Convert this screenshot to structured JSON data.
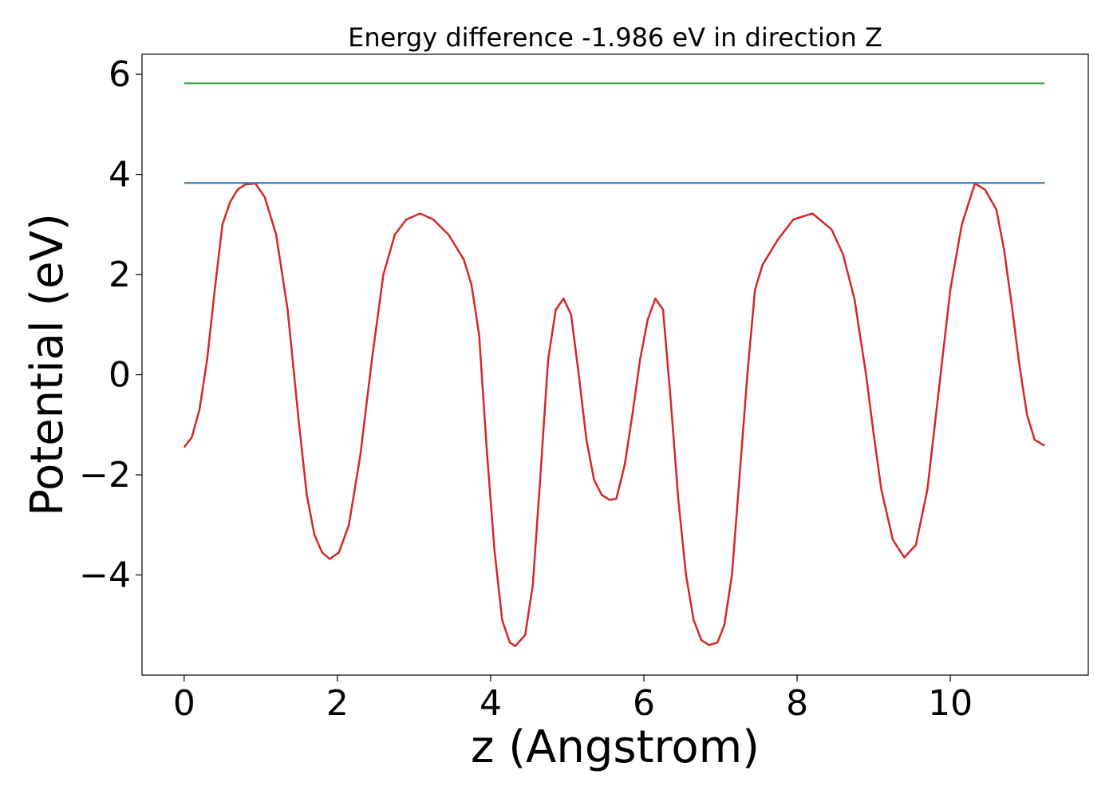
{
  "chart_data": {
    "type": "line",
    "title": "Energy difference -1.986 eV in direction Z",
    "xlabel": "z (Angstrom)",
    "ylabel": "Potential (eV)",
    "xlim": [
      -0.55,
      11.8
    ],
    "ylim": [
      -6.0,
      6.4
    ],
    "xticks": [
      0,
      2,
      4,
      6,
      8,
      10
    ],
    "xtick_labels": [
      "0",
      "2",
      "4",
      "6",
      "8",
      "10"
    ],
    "yticks": [
      -4,
      -2,
      0,
      2,
      4,
      6
    ],
    "ytick_labels": [
      "−4",
      "−2",
      "0",
      "2",
      "4",
      "6"
    ],
    "grid": false,
    "series": [
      {
        "color": "#d62728",
        "x": [
          0.0,
          0.1,
          0.2,
          0.3,
          0.4,
          0.5,
          0.6,
          0.7,
          0.8,
          0.93,
          1.05,
          1.2,
          1.35,
          1.5,
          1.6,
          1.7,
          1.8,
          1.9,
          2.02,
          2.15,
          2.3,
          2.45,
          2.6,
          2.75,
          2.9,
          3.08,
          3.25,
          3.45,
          3.65,
          3.75,
          3.85,
          3.95,
          4.05,
          4.15,
          4.25,
          4.32,
          4.45,
          4.55,
          4.65,
          4.75,
          4.85,
          4.95,
          5.05,
          5.15,
          5.25,
          5.35,
          5.45,
          5.55,
          5.64,
          5.75,
          5.85,
          5.95,
          6.05,
          6.15,
          6.25,
          6.35,
          6.45,
          6.55,
          6.65,
          6.75,
          6.85,
          6.96,
          7.05,
          7.15,
          7.25,
          7.35,
          7.45,
          7.55,
          7.75,
          7.95,
          8.2,
          8.45,
          8.6,
          8.75,
          8.9,
          9.0,
          9.1,
          9.25,
          9.4,
          9.55,
          9.7,
          9.85,
          10.0,
          10.15,
          10.32,
          10.45,
          10.6,
          10.7,
          10.8,
          10.9,
          11.0,
          11.1,
          11.23
        ],
        "values": [
          -1.45,
          -1.25,
          -0.7,
          0.3,
          1.7,
          3.0,
          3.45,
          3.7,
          3.8,
          3.82,
          3.55,
          2.8,
          1.3,
          -1.0,
          -2.4,
          -3.2,
          -3.55,
          -3.68,
          -3.55,
          -3.0,
          -1.6,
          0.3,
          2.0,
          2.8,
          3.1,
          3.22,
          3.1,
          2.8,
          2.3,
          1.8,
          0.8,
          -1.5,
          -3.5,
          -4.9,
          -5.35,
          -5.42,
          -5.2,
          -4.2,
          -2.0,
          0.3,
          1.3,
          1.52,
          1.2,
          0.0,
          -1.3,
          -2.1,
          -2.4,
          -2.5,
          -2.48,
          -1.8,
          -0.8,
          0.3,
          1.1,
          1.52,
          1.3,
          -0.5,
          -2.5,
          -4.0,
          -4.9,
          -5.3,
          -5.4,
          -5.35,
          -5.0,
          -4.0,
          -2.0,
          0.0,
          1.7,
          2.2,
          2.7,
          3.1,
          3.22,
          2.9,
          2.4,
          1.5,
          0.0,
          -1.2,
          -2.3,
          -3.3,
          -3.65,
          -3.4,
          -2.3,
          -0.3,
          1.7,
          3.0,
          3.82,
          3.7,
          3.3,
          2.5,
          1.4,
          0.2,
          -0.8,
          -1.3,
          -1.42
        ]
      },
      {
        "color": "#1f77b4",
        "x": [
          0.0,
          11.23
        ],
        "values": [
          3.83,
          3.83
        ]
      },
      {
        "color": "#2ca02c",
        "x": [
          0.0,
          11.23
        ],
        "values": [
          5.82,
          5.82
        ]
      }
    ]
  }
}
